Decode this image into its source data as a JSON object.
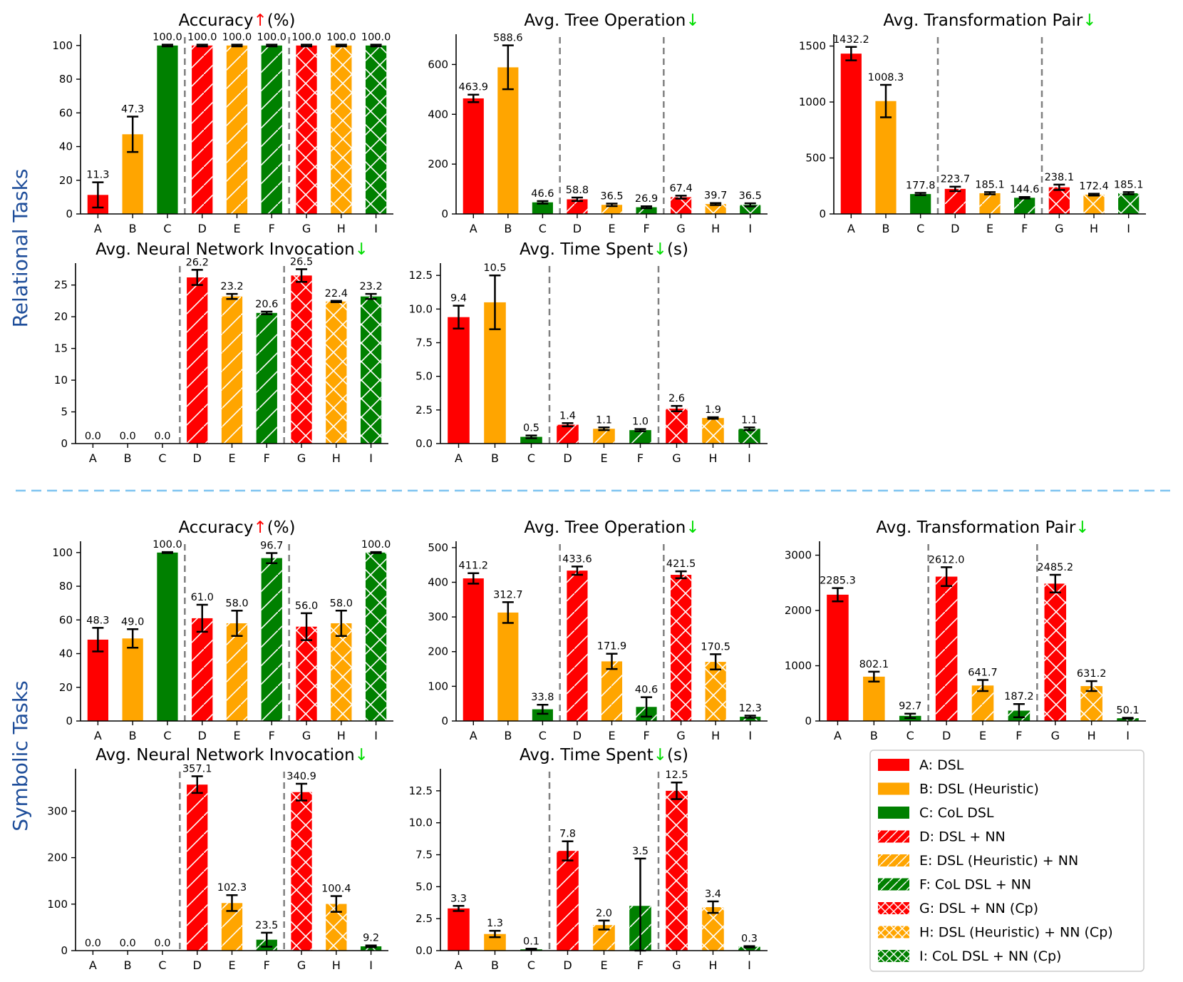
{
  "sections": [
    {
      "label": "Relational Tasks"
    },
    {
      "label": "Symbolic Tasks"
    }
  ],
  "categories": [
    "A",
    "B",
    "C",
    "D",
    "E",
    "F",
    "G",
    "H",
    "I"
  ],
  "colors": {
    "red": "#ff0000",
    "orange": "#ffa500",
    "green": "#008000",
    "up_arrow": "#ff0000",
    "down_arrow": "#00dd00",
    "separator": "#7fc4f0",
    "section_label": "#1f4e9a",
    "error_bar": "#000000",
    "guide_line": "#808080"
  },
  "legend": {
    "items": [
      {
        "key": "A",
        "label": "A: DSL",
        "color": "red",
        "hatch": false
      },
      {
        "key": "B",
        "label": "B: DSL (Heuristic)",
        "color": "orange",
        "hatch": false
      },
      {
        "key": "C",
        "label": "C: CoL DSL",
        "color": "green",
        "hatch": false
      },
      {
        "key": "D",
        "label": "D: DSL + NN",
        "color": "red",
        "hatch": "single"
      },
      {
        "key": "E",
        "label": "E: DSL (Heuristic) + NN",
        "color": "orange",
        "hatch": "single"
      },
      {
        "key": "F",
        "label": "F: CoL DSL + NN",
        "color": "green",
        "hatch": "single"
      },
      {
        "key": "G",
        "label": "G: DSL + NN (Cp)",
        "color": "red",
        "hatch": "cross"
      },
      {
        "key": "H",
        "label": "H: DSL (Heuristic) + NN (Cp)",
        "color": "orange",
        "hatch": "cross"
      },
      {
        "key": "I",
        "label": "I: CoL DSL + NN (Cp)",
        "color": "green",
        "hatch": "cross"
      }
    ]
  },
  "chart_data": [
    {
      "id": "rel-accuracy",
      "section": "Relational Tasks",
      "type": "bar",
      "title": {
        "pre": "Accuracy",
        "arrow": "↑",
        "post": "(%)"
      },
      "categories": [
        "A",
        "B",
        "C",
        "D",
        "E",
        "F",
        "G",
        "H",
        "I"
      ],
      "values": [
        11.3,
        47.3,
        100.0,
        100.0,
        100.0,
        100.0,
        100.0,
        100.0,
        100.0
      ],
      "labels": [
        "11.3",
        "47.3",
        "100.0",
        "100.0",
        "100.0",
        "100.0",
        "100.0",
        "100.0",
        "100.0"
      ],
      "errors": [
        7.5,
        10.5,
        0.5,
        0.5,
        0.5,
        0.5,
        0.5,
        0.5,
        0.5
      ],
      "ylim": [
        0,
        105
      ],
      "yticks": [
        0,
        20,
        40,
        60,
        80,
        100
      ],
      "ytick_labels": [
        "0",
        "20",
        "40",
        "60",
        "80",
        "100"
      ]
    },
    {
      "id": "rel-tree",
      "section": "Relational Tasks",
      "type": "bar",
      "title": {
        "pre": "Avg. Tree Operation",
        "arrow": "↓",
        "post": ""
      },
      "categories": [
        "A",
        "B",
        "C",
        "D",
        "E",
        "F",
        "G",
        "H",
        "I"
      ],
      "values": [
        463.9,
        588.6,
        46.6,
        58.8,
        36.5,
        26.9,
        67.4,
        39.7,
        36.5
      ],
      "labels": [
        "463.9",
        "588.6",
        "46.6",
        "58.8",
        "36.5",
        "26.9",
        "67.4",
        "39.7",
        "36.5"
      ],
      "errors": [
        15,
        88,
        5,
        7,
        5,
        4,
        6,
        4,
        6
      ],
      "ylim": [
        0,
        710
      ],
      "yticks": [
        0,
        200,
        400,
        600
      ],
      "ytick_labels": [
        "0",
        "200",
        "400",
        "600"
      ]
    },
    {
      "id": "rel-pair",
      "section": "Relational Tasks",
      "type": "bar",
      "title": {
        "pre": "Avg. Transformation Pair",
        "arrow": "↓",
        "post": ""
      },
      "categories": [
        "A",
        "B",
        "C",
        "D",
        "E",
        "F",
        "G",
        "H",
        "I"
      ],
      "values": [
        1432.2,
        1008.3,
        177.8,
        223.7,
        185.1,
        144.6,
        238.1,
        172.4,
        185.1
      ],
      "labels": [
        "1432.2",
        "1008.3",
        "177.8",
        "223.7",
        "185.1",
        "144.6",
        "238.1",
        "172.4",
        "185.1"
      ],
      "errors": [
        60,
        145,
        10,
        20,
        10,
        7,
        24,
        8,
        10
      ],
      "ylim": [
        0,
        1580
      ],
      "yticks": [
        0,
        500,
        1000,
        1500
      ],
      "ytick_labels": [
        "0",
        "500",
        "1000",
        "1500"
      ]
    },
    {
      "id": "rel-nn",
      "section": "Relational Tasks",
      "type": "bar",
      "title": {
        "pre": "Avg. Neural Network Invocation",
        "arrow": "↓",
        "post": ""
      },
      "categories": [
        "A",
        "B",
        "C",
        "D",
        "E",
        "F",
        "G",
        "H",
        "I"
      ],
      "values": [
        0.0,
        0.0,
        0.0,
        26.2,
        23.2,
        20.6,
        26.5,
        22.4,
        23.2
      ],
      "labels": [
        "0.0",
        "0.0",
        "0.0",
        "26.2",
        "23.2",
        "20.6",
        "26.5",
        "22.4",
        "23.2"
      ],
      "errors": [
        0,
        0,
        0,
        1.2,
        0.4,
        0.2,
        1.0,
        0.1,
        0.4
      ],
      "ylim": [
        0,
        28
      ],
      "yticks": [
        0,
        5,
        10,
        15,
        20,
        25
      ],
      "ytick_labels": [
        "0",
        "5",
        "10",
        "15",
        "20",
        "25"
      ]
    },
    {
      "id": "rel-time",
      "section": "Relational Tasks",
      "type": "bar",
      "title": {
        "pre": "Avg. Time Spent",
        "arrow": "↓",
        "post": "(s)"
      },
      "categories": [
        "A",
        "B",
        "C",
        "D",
        "E",
        "F",
        "G",
        "H",
        "I"
      ],
      "values": [
        9.4,
        10.5,
        0.5,
        1.4,
        1.1,
        1.0,
        2.6,
        1.9,
        1.1
      ],
      "labels": [
        "9.4",
        "10.5",
        "0.5",
        "1.4",
        "1.1",
        "1.0",
        "2.6",
        "1.9",
        "1.1"
      ],
      "errors": [
        0.85,
        2.0,
        0.1,
        0.12,
        0.1,
        0.08,
        0.2,
        0.06,
        0.1
      ],
      "ylim": [
        0,
        13.2
      ],
      "yticks": [
        0.0,
        2.5,
        5.0,
        7.5,
        10.0,
        12.5
      ],
      "ytick_labels": [
        "0.0",
        "2.5",
        "5.0",
        "7.5",
        "10.0",
        "12.5"
      ]
    },
    {
      "id": "sym-accuracy",
      "section": "Symbolic Tasks",
      "type": "bar",
      "title": {
        "pre": "Accuracy",
        "arrow": "↑",
        "post": "(%)"
      },
      "categories": [
        "A",
        "B",
        "C",
        "D",
        "E",
        "F",
        "G",
        "H",
        "I"
      ],
      "values": [
        48.3,
        49.0,
        100.0,
        61.0,
        58.0,
        96.7,
        56.0,
        58.0,
        100.0
      ],
      "labels": [
        "48.3",
        "49.0",
        "100.0",
        "61.0",
        "58.0",
        "96.7",
        "56.0",
        "58.0",
        "100.0"
      ],
      "errors": [
        7,
        5.5,
        0.3,
        8,
        7.5,
        3,
        8,
        7.5,
        0.3
      ],
      "ylim": [
        0,
        105
      ],
      "yticks": [
        0,
        20,
        40,
        60,
        80,
        100
      ],
      "ytick_labels": [
        "0",
        "20",
        "40",
        "60",
        "80",
        "100"
      ]
    },
    {
      "id": "sym-tree",
      "section": "Symbolic Tasks",
      "type": "bar",
      "title": {
        "pre": "Avg. Tree Operation",
        "arrow": "↓",
        "post": ""
      },
      "categories": [
        "A",
        "B",
        "C",
        "D",
        "E",
        "F",
        "G",
        "H",
        "I"
      ],
      "values": [
        411.2,
        312.7,
        33.8,
        433.6,
        171.9,
        40.6,
        421.5,
        170.5,
        12.3
      ],
      "labels": [
        "411.2",
        "312.7",
        "33.8",
        "433.6",
        "171.9",
        "40.6",
        "421.5",
        "170.5",
        "12.3"
      ],
      "errors": [
        15,
        30,
        13,
        12,
        22,
        28,
        10,
        22,
        3
      ],
      "ylim": [
        0,
        510
      ],
      "yticks": [
        0,
        100,
        200,
        300,
        400,
        500
      ],
      "ytick_labels": [
        "0",
        "100",
        "200",
        "300",
        "400",
        "500"
      ]
    },
    {
      "id": "sym-pair",
      "section": "Symbolic Tasks",
      "type": "bar",
      "title": {
        "pre": "Avg. Transformation Pair",
        "arrow": "↓",
        "post": ""
      },
      "categories": [
        "A",
        "B",
        "C",
        "D",
        "E",
        "F",
        "G",
        "H",
        "I"
      ],
      "values": [
        2285.3,
        802.1,
        92.7,
        2612.0,
        641.7,
        187.2,
        2485.2,
        631.2,
        50.1
      ],
      "labels": [
        "2285.3",
        "802.1",
        "92.7",
        "2612.0",
        "641.7",
        "187.2",
        "2485.2",
        "631.2",
        "50.1"
      ],
      "errors": [
        120,
        90,
        40,
        170,
        100,
        120,
        160,
        90,
        8
      ],
      "ylim": [
        0,
        3200
      ],
      "yticks": [
        0,
        1000,
        2000,
        3000
      ],
      "ytick_labels": [
        "0",
        "1000",
        "2000",
        "3000"
      ]
    },
    {
      "id": "sym-nn",
      "section": "Symbolic Tasks",
      "type": "bar",
      "title": {
        "pre": "Avg. Neural Network Invocation",
        "arrow": "↓",
        "post": ""
      },
      "categories": [
        "A",
        "B",
        "C",
        "D",
        "E",
        "F",
        "G",
        "H",
        "I"
      ],
      "values": [
        0.0,
        0.0,
        0.0,
        357.1,
        102.3,
        23.5,
        340.9,
        100.4,
        9.2
      ],
      "labels": [
        "0.0",
        "0.0",
        "0.0",
        "357.1",
        "102.3",
        "23.5",
        "340.9",
        "100.4",
        "9.2"
      ],
      "errors": [
        0,
        0,
        0,
        18,
        17,
        15,
        18,
        17,
        2
      ],
      "ylim": [
        0,
        385
      ],
      "yticks": [
        0,
        100,
        200,
        300
      ],
      "ytick_labels": [
        "0",
        "100",
        "200",
        "300"
      ]
    },
    {
      "id": "sym-time",
      "section": "Symbolic Tasks",
      "type": "bar",
      "title": {
        "pre": "Avg. Time Spent",
        "arrow": "↓",
        "post": "(s)"
      },
      "categories": [
        "A",
        "B",
        "C",
        "D",
        "E",
        "F",
        "G",
        "H",
        "I"
      ],
      "values": [
        3.3,
        1.3,
        0.1,
        7.8,
        2.0,
        3.5,
        12.5,
        3.4,
        0.3
      ],
      "labels": [
        "3.3",
        "1.3",
        "0.1",
        "7.8",
        "2.0",
        "3.5",
        "12.5",
        "3.4",
        "0.3"
      ],
      "errors": [
        0.2,
        0.25,
        0.05,
        0.75,
        0.35,
        3.7,
        0.65,
        0.45,
        0.05
      ],
      "ylim": [
        0,
        14
      ],
      "yticks": [
        0.0,
        2.5,
        5.0,
        7.5,
        10.0,
        12.5
      ],
      "ytick_labels": [
        "0.0",
        "2.5",
        "5.0",
        "7.5",
        "10.0",
        "12.5"
      ]
    }
  ]
}
